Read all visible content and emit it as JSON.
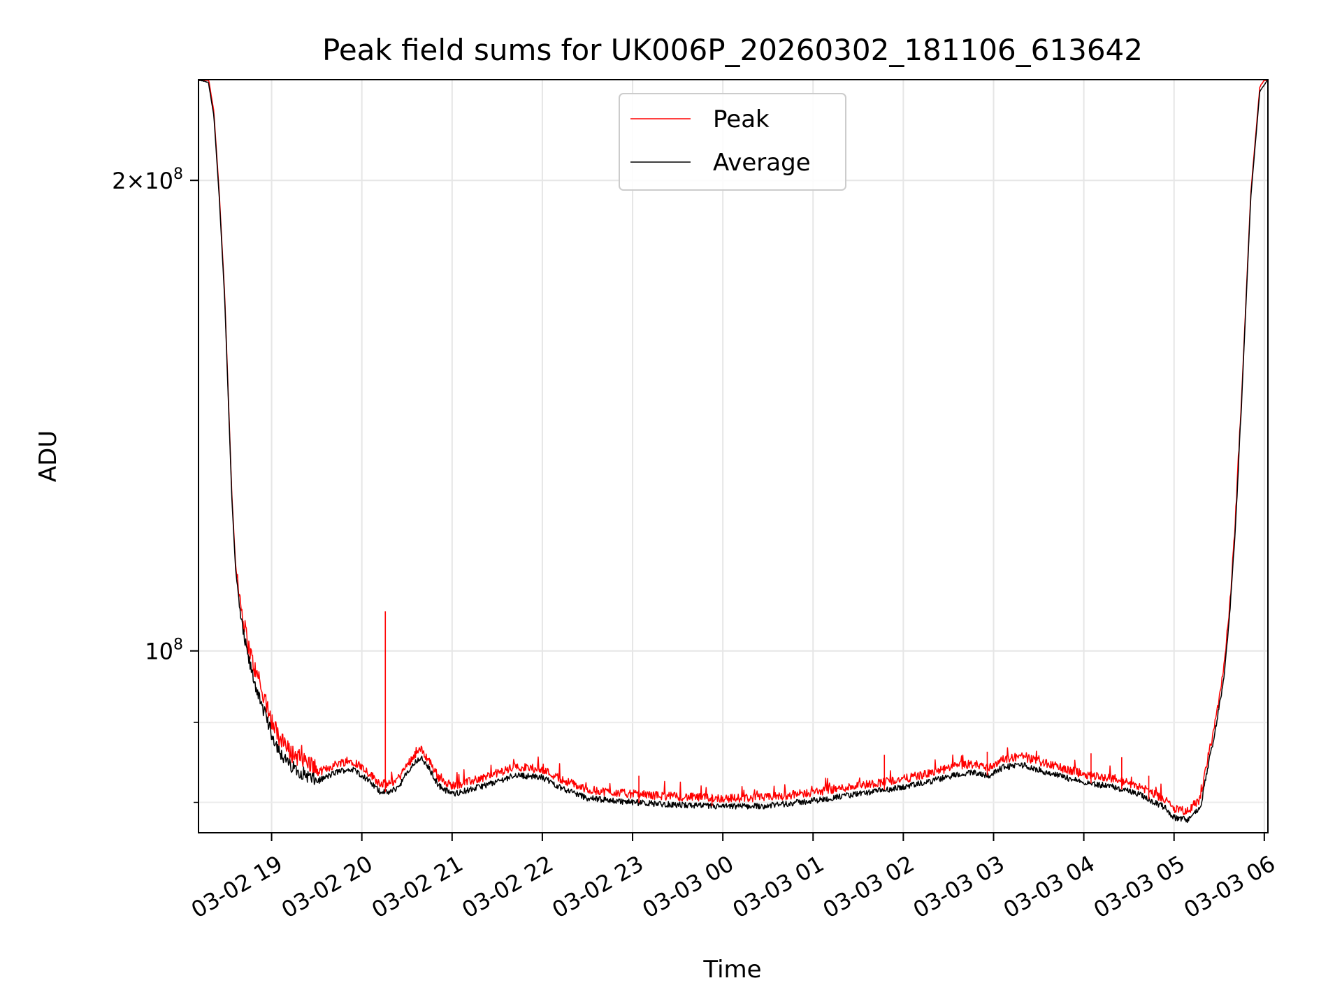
{
  "chart_data": {
    "type": "line",
    "title": "Peak field sums for UK006P_20260302_181106_613642",
    "xlabel": "Time",
    "ylabel": "ADU",
    "yscale": "log",
    "xlim_hours": [
      18.19,
      30.04
    ],
    "ylim": [
      76500000,
      232000000
    ],
    "x_ticks": [
      {
        "hour": 19,
        "label": "03-02 19"
      },
      {
        "hour": 20,
        "label": "03-02 20"
      },
      {
        "hour": 21,
        "label": "03-02 21"
      },
      {
        "hour": 22,
        "label": "03-02 22"
      },
      {
        "hour": 23,
        "label": "03-02 23"
      },
      {
        "hour": 24,
        "label": "03-03 00"
      },
      {
        "hour": 25,
        "label": "03-03 01"
      },
      {
        "hour": 26,
        "label": "03-03 02"
      },
      {
        "hour": 27,
        "label": "03-03 03"
      },
      {
        "hour": 28,
        "label": "03-03 04"
      },
      {
        "hour": 29,
        "label": "03-03 05"
      },
      {
        "hour": 30,
        "label": "03-03 06"
      }
    ],
    "y_ticks_major": [
      {
        "value": 100000000,
        "base": "10",
        "exp": "8",
        "mantissa": ""
      },
      {
        "value": 200000000,
        "base": "10",
        "exp": "8",
        "mantissa": "2×"
      }
    ],
    "y_ticks_minor": [
      80000000,
      90000000
    ],
    "grid": true,
    "legend_position": "top-center",
    "series": [
      {
        "name": "Peak",
        "color": "#ff0000",
        "spikes": [
          {
            "hour": 20.26,
            "value": 106000000
          },
          {
            "hour": 23.07,
            "value": 83200000
          },
          {
            "hour": 23.88,
            "value": 81000000
          },
          {
            "hour": 25.79,
            "value": 85800000
          },
          {
            "hour": 26.93,
            "value": 86200000
          },
          {
            "hour": 28.08,
            "value": 86000000
          },
          {
            "hour": 28.42,
            "value": 85500000
          },
          {
            "hour": 28.72,
            "value": 83200000
          }
        ]
      },
      {
        "name": "Average",
        "color": "#000000",
        "x_hours": [
          18.19,
          18.3,
          18.36,
          18.42,
          18.48,
          18.52,
          18.56,
          18.6,
          18.64,
          18.68,
          18.74,
          18.8,
          18.9,
          19.0,
          19.1,
          19.2,
          19.35,
          19.5,
          19.6,
          19.75,
          19.9,
          20.0,
          20.1,
          20.2,
          20.3,
          20.4,
          20.5,
          20.6,
          20.65,
          20.75,
          20.85,
          21.0,
          21.2,
          21.5,
          21.7,
          22.0,
          22.2,
          22.5,
          23.0,
          23.5,
          24.0,
          24.5,
          25.0,
          25.5,
          26.0,
          26.3,
          26.6,
          26.8,
          26.95,
          27.1,
          27.3,
          27.6,
          28.0,
          28.3,
          28.6,
          28.9,
          29.0,
          29.15,
          29.3,
          29.35,
          29.45,
          29.55,
          29.62,
          29.68,
          29.75,
          29.85,
          29.95,
          30.04
        ],
        "values": [
          232000000,
          231000000,
          220000000,
          195000000,
          168000000,
          145000000,
          125000000,
          113000000,
          107000000,
          103000000,
          99000000,
          96000000,
          92000000,
          88500000,
          86000000,
          84500000,
          83500000,
          82500000,
          83000000,
          83800000,
          84000000,
          83300000,
          82300000,
          81300000,
          81200000,
          81800000,
          83500000,
          85000000,
          85500000,
          84000000,
          82000000,
          81000000,
          81500000,
          82500000,
          83300000,
          83000000,
          81800000,
          80500000,
          80000000,
          79700000,
          79500000,
          79600000,
          80200000,
          81000000,
          81800000,
          82500000,
          83400000,
          83600000,
          83200000,
          84200000,
          84600000,
          83600000,
          82400000,
          81900000,
          81000000,
          79400000,
          78200000,
          78000000,
          79500000,
          83000000,
          88500000,
          96000000,
          106000000,
          120000000,
          145000000,
          195000000,
          228000000,
          232000000
        ]
      }
    ]
  }
}
